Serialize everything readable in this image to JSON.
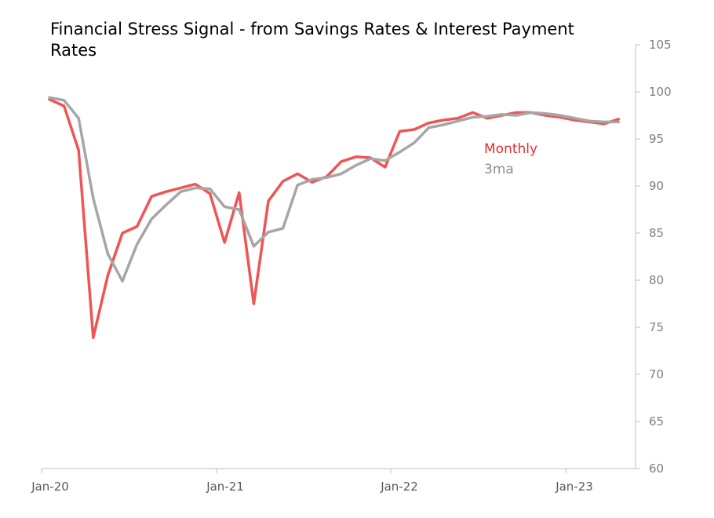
{
  "chart_data": {
    "type": "line",
    "title": "Financial Stress Signal - from Savings Rates & Interest Payment Rates",
    "xlabel": "",
    "ylabel": "",
    "ylim": [
      60,
      105
    ],
    "yticks": [
      60,
      65,
      70,
      75,
      80,
      85,
      90,
      95,
      100,
      105
    ],
    "y_axis_side": "right",
    "x_tick_labels": [
      "Jan-20",
      "Jan-21",
      "Jan-22",
      "Jan-23"
    ],
    "x_tick_months": [
      0,
      12,
      24,
      36
    ],
    "x_range_months": [
      0,
      40
    ],
    "grid": false,
    "legend_position": "upper-right (inside plot, below lines)",
    "series": [
      {
        "name": "Monthly",
        "color": "#f05454",
        "start_month": 0,
        "values": [
          99.2,
          98.5,
          93.8,
          73.9,
          80.5,
          85.0,
          85.7,
          88.9,
          89.4,
          89.8,
          90.2,
          89.2,
          84.0,
          89.3,
          77.5,
          88.4,
          90.5,
          91.3,
          90.4,
          91.0,
          92.6,
          93.1,
          93.0,
          92.0,
          95.8,
          96.0,
          96.7,
          97.0,
          97.2,
          97.8,
          97.2,
          97.5,
          97.8,
          97.8,
          97.5,
          97.3,
          97.0,
          96.8,
          96.6,
          97.1
        ]
      },
      {
        "name": "3ma",
        "color": "#a6a6a6",
        "start_month": 0,
        "values": [
          99.4,
          99.1,
          97.2,
          88.7,
          82.8,
          79.9,
          83.8,
          86.5,
          88.0,
          89.4,
          89.8,
          89.7,
          87.8,
          87.5,
          83.6,
          85.1,
          85.5,
          90.1,
          90.7,
          90.9,
          91.3,
          92.2,
          92.9,
          92.7,
          93.6,
          94.6,
          96.2,
          96.5,
          96.9,
          97.3,
          97.4,
          97.6,
          97.5,
          97.8,
          97.7,
          97.5,
          97.2,
          96.9,
          96.8,
          96.8
        ]
      }
    ]
  }
}
